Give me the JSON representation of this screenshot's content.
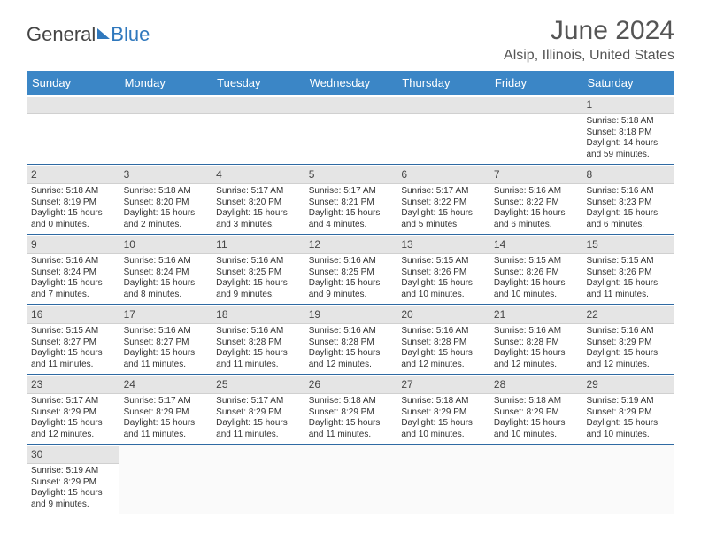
{
  "brand": {
    "part1": "General",
    "part2": "Blue"
  },
  "title": "June 2024",
  "location": "Alsip, Illinois, United States",
  "colors": {
    "header_bg": "#3b86c6",
    "header_text": "#ffffff",
    "daynum_bg": "#e5e5e5",
    "week_divider": "#2f6aa3",
    "text": "#333333",
    "accent": "#2f78bd"
  },
  "day_labels": [
    "Sunday",
    "Monday",
    "Tuesday",
    "Wednesday",
    "Thursday",
    "Friday",
    "Saturday"
  ],
  "weeks": [
    [
      {
        "n": "",
        "empty": true
      },
      {
        "n": "",
        "empty": true
      },
      {
        "n": "",
        "empty": true
      },
      {
        "n": "",
        "empty": true
      },
      {
        "n": "",
        "empty": true
      },
      {
        "n": "",
        "empty": true
      },
      {
        "n": "1",
        "sr": "Sunrise: 5:18 AM",
        "ss": "Sunset: 8:18 PM",
        "dl": "Daylight: 14 hours and 59 minutes."
      }
    ],
    [
      {
        "n": "2",
        "sr": "Sunrise: 5:18 AM",
        "ss": "Sunset: 8:19 PM",
        "dl": "Daylight: 15 hours and 0 minutes."
      },
      {
        "n": "3",
        "sr": "Sunrise: 5:18 AM",
        "ss": "Sunset: 8:20 PM",
        "dl": "Daylight: 15 hours and 2 minutes."
      },
      {
        "n": "4",
        "sr": "Sunrise: 5:17 AM",
        "ss": "Sunset: 8:20 PM",
        "dl": "Daylight: 15 hours and 3 minutes."
      },
      {
        "n": "5",
        "sr": "Sunrise: 5:17 AM",
        "ss": "Sunset: 8:21 PM",
        "dl": "Daylight: 15 hours and 4 minutes."
      },
      {
        "n": "6",
        "sr": "Sunrise: 5:17 AM",
        "ss": "Sunset: 8:22 PM",
        "dl": "Daylight: 15 hours and 5 minutes."
      },
      {
        "n": "7",
        "sr": "Sunrise: 5:16 AM",
        "ss": "Sunset: 8:22 PM",
        "dl": "Daylight: 15 hours and 6 minutes."
      },
      {
        "n": "8",
        "sr": "Sunrise: 5:16 AM",
        "ss": "Sunset: 8:23 PM",
        "dl": "Daylight: 15 hours and 6 minutes."
      }
    ],
    [
      {
        "n": "9",
        "sr": "Sunrise: 5:16 AM",
        "ss": "Sunset: 8:24 PM",
        "dl": "Daylight: 15 hours and 7 minutes."
      },
      {
        "n": "10",
        "sr": "Sunrise: 5:16 AM",
        "ss": "Sunset: 8:24 PM",
        "dl": "Daylight: 15 hours and 8 minutes."
      },
      {
        "n": "11",
        "sr": "Sunrise: 5:16 AM",
        "ss": "Sunset: 8:25 PM",
        "dl": "Daylight: 15 hours and 9 minutes."
      },
      {
        "n": "12",
        "sr": "Sunrise: 5:16 AM",
        "ss": "Sunset: 8:25 PM",
        "dl": "Daylight: 15 hours and 9 minutes."
      },
      {
        "n": "13",
        "sr": "Sunrise: 5:15 AM",
        "ss": "Sunset: 8:26 PM",
        "dl": "Daylight: 15 hours and 10 minutes."
      },
      {
        "n": "14",
        "sr": "Sunrise: 5:15 AM",
        "ss": "Sunset: 8:26 PM",
        "dl": "Daylight: 15 hours and 10 minutes."
      },
      {
        "n": "15",
        "sr": "Sunrise: 5:15 AM",
        "ss": "Sunset: 8:26 PM",
        "dl": "Daylight: 15 hours and 11 minutes."
      }
    ],
    [
      {
        "n": "16",
        "sr": "Sunrise: 5:15 AM",
        "ss": "Sunset: 8:27 PM",
        "dl": "Daylight: 15 hours and 11 minutes."
      },
      {
        "n": "17",
        "sr": "Sunrise: 5:16 AM",
        "ss": "Sunset: 8:27 PM",
        "dl": "Daylight: 15 hours and 11 minutes."
      },
      {
        "n": "18",
        "sr": "Sunrise: 5:16 AM",
        "ss": "Sunset: 8:28 PM",
        "dl": "Daylight: 15 hours and 11 minutes."
      },
      {
        "n": "19",
        "sr": "Sunrise: 5:16 AM",
        "ss": "Sunset: 8:28 PM",
        "dl": "Daylight: 15 hours and 12 minutes."
      },
      {
        "n": "20",
        "sr": "Sunrise: 5:16 AM",
        "ss": "Sunset: 8:28 PM",
        "dl": "Daylight: 15 hours and 12 minutes."
      },
      {
        "n": "21",
        "sr": "Sunrise: 5:16 AM",
        "ss": "Sunset: 8:28 PM",
        "dl": "Daylight: 15 hours and 12 minutes."
      },
      {
        "n": "22",
        "sr": "Sunrise: 5:16 AM",
        "ss": "Sunset: 8:29 PM",
        "dl": "Daylight: 15 hours and 12 minutes."
      }
    ],
    [
      {
        "n": "23",
        "sr": "Sunrise: 5:17 AM",
        "ss": "Sunset: 8:29 PM",
        "dl": "Daylight: 15 hours and 12 minutes."
      },
      {
        "n": "24",
        "sr": "Sunrise: 5:17 AM",
        "ss": "Sunset: 8:29 PM",
        "dl": "Daylight: 15 hours and 11 minutes."
      },
      {
        "n": "25",
        "sr": "Sunrise: 5:17 AM",
        "ss": "Sunset: 8:29 PM",
        "dl": "Daylight: 15 hours and 11 minutes."
      },
      {
        "n": "26",
        "sr": "Sunrise: 5:18 AM",
        "ss": "Sunset: 8:29 PM",
        "dl": "Daylight: 15 hours and 11 minutes."
      },
      {
        "n": "27",
        "sr": "Sunrise: 5:18 AM",
        "ss": "Sunset: 8:29 PM",
        "dl": "Daylight: 15 hours and 10 minutes."
      },
      {
        "n": "28",
        "sr": "Sunrise: 5:18 AM",
        "ss": "Sunset: 8:29 PM",
        "dl": "Daylight: 15 hours and 10 minutes."
      },
      {
        "n": "29",
        "sr": "Sunrise: 5:19 AM",
        "ss": "Sunset: 8:29 PM",
        "dl": "Daylight: 15 hours and 10 minutes."
      }
    ],
    [
      {
        "n": "30",
        "sr": "Sunrise: 5:19 AM",
        "ss": "Sunset: 8:29 PM",
        "dl": "Daylight: 15 hours and 9 minutes."
      },
      {
        "n": "",
        "empty": true
      },
      {
        "n": "",
        "empty": true
      },
      {
        "n": "",
        "empty": true
      },
      {
        "n": "",
        "empty": true
      },
      {
        "n": "",
        "empty": true
      },
      {
        "n": "",
        "empty": true
      }
    ]
  ]
}
